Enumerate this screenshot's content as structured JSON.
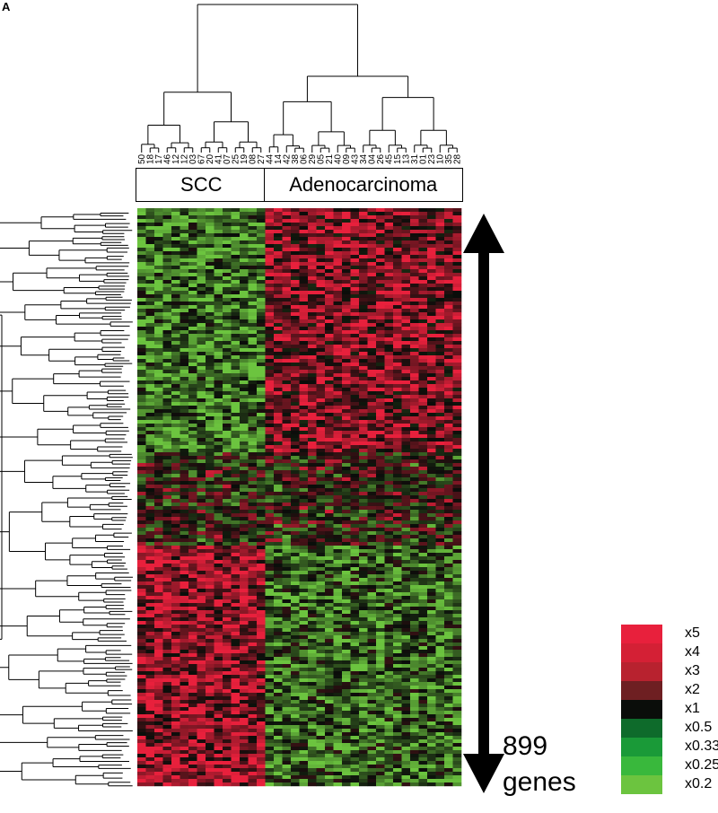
{
  "panel_label": "A",
  "chart_data": {
    "type": "heatmap",
    "samples": [
      "50",
      "18",
      "17",
      "46",
      "12",
      "12",
      "03",
      "67",
      "20",
      "41",
      "07",
      "25",
      "19",
      "08",
      "27",
      "44",
      "14",
      "42",
      "38",
      "06",
      "29",
      "05",
      "21",
      "40",
      "09",
      "43",
      "34",
      "04",
      "26",
      "45",
      "15",
      "13",
      "31",
      "01",
      "23",
      "10",
      "35",
      "28"
    ],
    "groups": [
      {
        "label": "SCC",
        "count": 15
      },
      {
        "label": "Adenocarcinoma",
        "count": 23
      }
    ],
    "genes_count": 899,
    "annotation": {
      "value": "899",
      "unit": "genes"
    },
    "color_scale": [
      {
        "label": "x5",
        "color": "#e8203c"
      },
      {
        "label": "x4",
        "color": "#d42035"
      },
      {
        "label": "x3",
        "color": "#b8222f"
      },
      {
        "label": "x2",
        "color": "#6e1f22"
      },
      {
        "label": "x1",
        "color": "#0a0d0a"
      },
      {
        "label": "x0.5",
        "color": "#0e6b2b"
      },
      {
        "label": "x0.33",
        "color": "#1a9a38"
      },
      {
        "label": "x0.25",
        "color": "#39b83c"
      },
      {
        "label": "x0.2",
        "color": "#6cc43f"
      }
    ],
    "colors": {
      "up": "#e8203c",
      "neutral": "#0a0d0a",
      "down": "#6cc43f"
    }
  }
}
